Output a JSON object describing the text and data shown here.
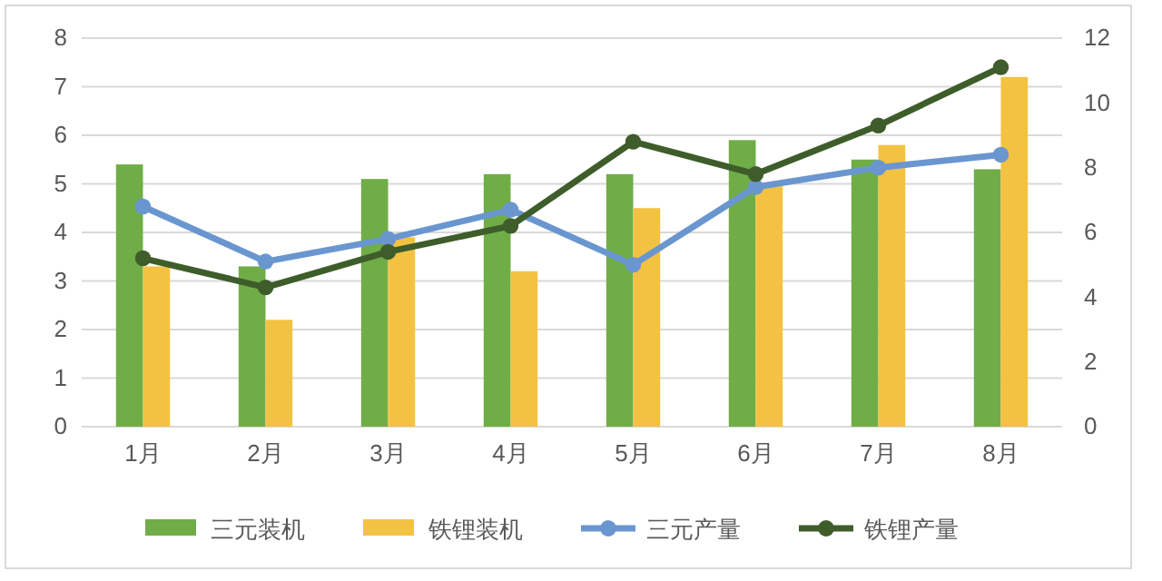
{
  "chart_data": {
    "type": "bar",
    "categories": [
      "1月",
      "2月",
      "3月",
      "4月",
      "5月",
      "6月",
      "7月",
      "8月"
    ],
    "series": [
      {
        "name": "三元装机",
        "color": "#70ad47",
        "values": [
          5.4,
          3.3,
          5.1,
          5.2,
          5.2,
          5.9,
          5.5,
          5.3
        ]
      },
      {
        "name": "铁锂装机",
        "color": "#f4c242",
        "values": [
          3.3,
          2.2,
          3.9,
          3.2,
          4.5,
          5.0,
          5.8,
          7.2
        ]
      },
      {
        "name": "三元产量",
        "type": "line",
        "axis": "y2",
        "color": "#6a96d0",
        "values": [
          6.8,
          5.1,
          5.8,
          6.7,
          5.0,
          7.4,
          8.0,
          8.4
        ]
      },
      {
        "name": "铁锂产量",
        "type": "line",
        "axis": "y2",
        "color": "#3e5d2a",
        "values": [
          5.2,
          4.3,
          5.4,
          6.2,
          8.8,
          7.8,
          9.3,
          11.1
        ]
      }
    ],
    "ylim": [
      0,
      8
    ],
    "yticks": [
      0,
      1,
      2,
      3,
      4,
      5,
      6,
      7,
      8
    ],
    "y2lim": [
      0,
      12
    ],
    "y2ticks": [
      0,
      2,
      4,
      6,
      8,
      10,
      12
    ],
    "grid": "y",
    "legend": "bottom",
    "marker": "circle",
    "line_style": "solid"
  }
}
